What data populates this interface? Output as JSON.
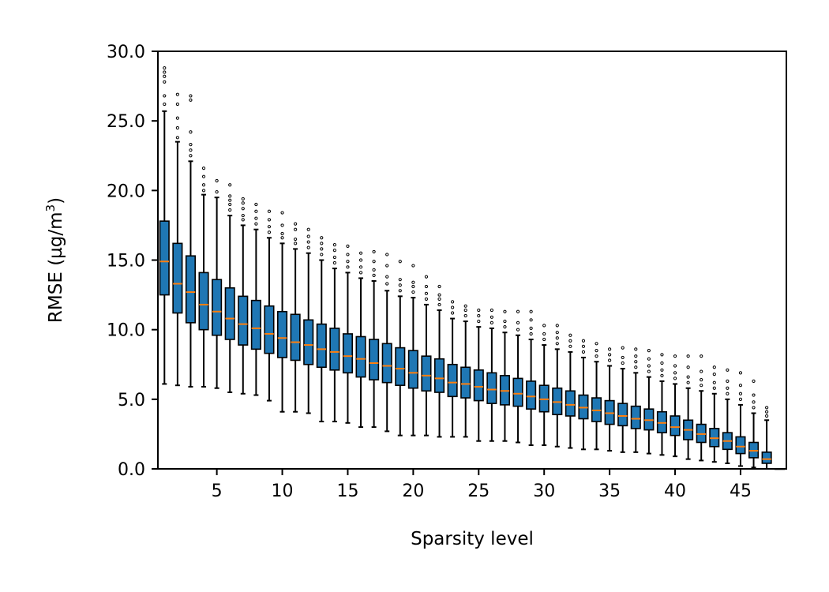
{
  "chart_data": {
    "type": "boxplot",
    "title": "",
    "xlabel": "Sparsity level",
    "ylabel_main": "RMSE (µg/m",
    "ylabel_sup": "3",
    "ylabel_close": ")",
    "xlim": [
      0.5,
      48.5
    ],
    "ylim": [
      0,
      30
    ],
    "x_ticks": [
      5,
      10,
      15,
      20,
      25,
      30,
      35,
      40,
      45
    ],
    "x_tick_labels": [
      "5",
      "10",
      "15",
      "20",
      "25",
      "30",
      "35",
      "40",
      "45"
    ],
    "y_ticks": [
      0,
      5,
      10,
      15,
      20,
      25,
      30
    ],
    "y_tick_labels": [
      "0.0",
      "5.0",
      "10.0",
      "15.0",
      "20.0",
      "25.0",
      "30.0"
    ],
    "grid": false,
    "colors": {
      "box": "#1f77b4",
      "median": "#ff7f0e",
      "outline": "#000000"
    },
    "boxes": [
      {
        "x": 1,
        "whislo": 6.1,
        "q1": 12.5,
        "med": 14.9,
        "q3": 17.8,
        "whishi": 25.7,
        "fliers": [
          26.2,
          26.8,
          27.8,
          28.2,
          28.5,
          28.8
        ]
      },
      {
        "x": 2,
        "whislo": 6.0,
        "q1": 11.2,
        "med": 13.3,
        "q3": 16.2,
        "whishi": 23.5,
        "fliers": [
          23.8,
          24.5,
          25.2,
          26.2,
          26.9
        ]
      },
      {
        "x": 3,
        "whislo": 5.9,
        "q1": 10.5,
        "med": 12.7,
        "q3": 15.3,
        "whishi": 22.1,
        "fliers": [
          22.5,
          22.9,
          23.3,
          24.2,
          26.5,
          26.8
        ]
      },
      {
        "x": 4,
        "whislo": 5.9,
        "q1": 10.0,
        "med": 11.8,
        "q3": 14.1,
        "whishi": 19.7,
        "fliers": [
          20.0,
          20.4,
          21.0,
          21.6
        ]
      },
      {
        "x": 5,
        "whislo": 5.8,
        "q1": 9.6,
        "med": 11.3,
        "q3": 13.6,
        "whishi": 19.5,
        "fliers": [
          19.9,
          20.7
        ]
      },
      {
        "x": 6,
        "whislo": 5.5,
        "q1": 9.3,
        "med": 10.8,
        "q3": 13.0,
        "whishi": 18.2,
        "fliers": [
          18.6,
          19.0,
          19.3,
          19.6,
          20.4
        ]
      },
      {
        "x": 7,
        "whislo": 5.4,
        "q1": 8.9,
        "med": 10.4,
        "q3": 12.4,
        "whishi": 17.5,
        "fliers": [
          17.9,
          18.2,
          18.7,
          19.1,
          19.4
        ]
      },
      {
        "x": 8,
        "whislo": 5.3,
        "q1": 8.6,
        "med": 10.1,
        "q3": 12.1,
        "whishi": 17.2,
        "fliers": [
          17.6,
          18.0,
          18.5,
          19.0
        ]
      },
      {
        "x": 9,
        "whislo": 4.9,
        "q1": 8.3,
        "med": 9.7,
        "q3": 11.7,
        "whishi": 16.6,
        "fliers": [
          17.0,
          17.4,
          17.9,
          18.5
        ]
      },
      {
        "x": 10,
        "whislo": 4.1,
        "q1": 8.0,
        "med": 9.4,
        "q3": 11.3,
        "whishi": 16.2,
        "fliers": [
          16.6,
          16.9,
          17.5,
          18.4
        ]
      },
      {
        "x": 11,
        "whislo": 4.1,
        "q1": 7.8,
        "med": 9.1,
        "q3": 11.1,
        "whishi": 15.8,
        "fliers": [
          16.2,
          16.5,
          17.2,
          17.6
        ]
      },
      {
        "x": 12,
        "whislo": 4.0,
        "q1": 7.5,
        "med": 8.9,
        "q3": 10.7,
        "whishi": 15.5,
        "fliers": [
          15.9,
          16.3,
          16.7,
          17.2
        ]
      },
      {
        "x": 13,
        "whislo": 3.4,
        "q1": 7.3,
        "med": 8.6,
        "q3": 10.4,
        "whishi": 15.0,
        "fliers": [
          15.4,
          15.8,
          16.2,
          16.6
        ]
      },
      {
        "x": 14,
        "whislo": 3.4,
        "q1": 7.1,
        "med": 8.4,
        "q3": 10.1,
        "whishi": 14.4,
        "fliers": [
          14.8,
          15.2,
          15.7,
          16.1
        ]
      },
      {
        "x": 15,
        "whislo": 3.3,
        "q1": 6.9,
        "med": 8.1,
        "q3": 9.7,
        "whishi": 14.1,
        "fliers": [
          14.5,
          14.9,
          15.4,
          16.0
        ]
      },
      {
        "x": 16,
        "whislo": 3.0,
        "q1": 6.6,
        "med": 7.9,
        "q3": 9.5,
        "whishi": 13.7,
        "fliers": [
          14.1,
          14.5,
          15.0,
          15.5
        ]
      },
      {
        "x": 17,
        "whislo": 3.0,
        "q1": 6.4,
        "med": 7.6,
        "q3": 9.3,
        "whishi": 13.5,
        "fliers": [
          13.9,
          14.3,
          14.9,
          15.6
        ]
      },
      {
        "x": 18,
        "whislo": 2.7,
        "q1": 6.2,
        "med": 7.4,
        "q3": 9.0,
        "whishi": 12.8,
        "fliers": [
          13.3,
          13.8,
          14.6,
          15.4
        ]
      },
      {
        "x": 19,
        "whislo": 2.4,
        "q1": 6.0,
        "med": 7.2,
        "q3": 8.7,
        "whishi": 12.4,
        "fliers": [
          12.8,
          13.2,
          13.6,
          14.9
        ]
      },
      {
        "x": 20,
        "whislo": 2.4,
        "q1": 5.8,
        "med": 6.9,
        "q3": 8.5,
        "whishi": 12.3,
        "fliers": [
          12.7,
          13.1,
          13.4,
          14.6
        ]
      },
      {
        "x": 21,
        "whislo": 2.4,
        "q1": 5.6,
        "med": 6.7,
        "q3": 8.1,
        "whishi": 11.8,
        "fliers": [
          12.2,
          12.6,
          13.1,
          13.8
        ]
      },
      {
        "x": 22,
        "whislo": 2.3,
        "q1": 5.5,
        "med": 6.5,
        "q3": 7.9,
        "whishi": 11.4,
        "fliers": [
          11.8,
          12.2,
          12.5,
          13.1
        ]
      },
      {
        "x": 23,
        "whislo": 2.3,
        "q1": 5.2,
        "med": 6.2,
        "q3": 7.5,
        "whishi": 10.8,
        "fliers": [
          11.2,
          11.6,
          12.0
        ]
      },
      {
        "x": 24,
        "whislo": 2.3,
        "q1": 5.1,
        "med": 6.1,
        "q3": 7.3,
        "whishi": 10.6,
        "fliers": [
          11.0,
          11.4,
          11.7
        ]
      },
      {
        "x": 25,
        "whislo": 2.0,
        "q1": 4.9,
        "med": 5.9,
        "q3": 7.1,
        "whishi": 10.2,
        "fliers": [
          10.6,
          11.0,
          11.4
        ]
      },
      {
        "x": 26,
        "whislo": 2.0,
        "q1": 4.7,
        "med": 5.7,
        "q3": 6.9,
        "whishi": 10.1,
        "fliers": [
          10.5,
          10.9,
          11.4
        ]
      },
      {
        "x": 27,
        "whislo": 2.0,
        "q1": 4.6,
        "med": 5.6,
        "q3": 6.7,
        "whishi": 9.8,
        "fliers": [
          10.2,
          10.6,
          11.3
        ]
      },
      {
        "x": 28,
        "whislo": 1.9,
        "q1": 4.5,
        "med": 5.4,
        "q3": 6.5,
        "whishi": 9.6,
        "fliers": [
          10.0,
          10.5,
          11.3
        ]
      },
      {
        "x": 29,
        "whislo": 1.7,
        "q1": 4.3,
        "med": 5.2,
        "q3": 6.3,
        "whishi": 9.3,
        "fliers": [
          9.7,
          10.1,
          10.7,
          11.3
        ]
      },
      {
        "x": 30,
        "whislo": 1.7,
        "q1": 4.1,
        "med": 5.0,
        "q3": 6.0,
        "whishi": 8.9,
        "fliers": [
          9.3,
          9.7,
          10.3
        ]
      },
      {
        "x": 31,
        "whislo": 1.6,
        "q1": 3.9,
        "med": 4.8,
        "q3": 5.8,
        "whishi": 8.6,
        "fliers": [
          9.0,
          9.4,
          9.8,
          10.3
        ]
      },
      {
        "x": 32,
        "whislo": 1.5,
        "q1": 3.8,
        "med": 4.6,
        "q3": 5.6,
        "whishi": 8.4,
        "fliers": [
          8.8,
          9.2,
          9.6
        ]
      },
      {
        "x": 33,
        "whislo": 1.4,
        "q1": 3.6,
        "med": 4.4,
        "q3": 5.3,
        "whishi": 8.0,
        "fliers": [
          8.4,
          8.8,
          9.2
        ]
      },
      {
        "x": 34,
        "whislo": 1.4,
        "q1": 3.4,
        "med": 4.2,
        "q3": 5.1,
        "whishi": 7.7,
        "fliers": [
          8.1,
          8.5,
          9.0
        ]
      },
      {
        "x": 35,
        "whislo": 1.3,
        "q1": 3.2,
        "med": 4.0,
        "q3": 4.9,
        "whishi": 7.4,
        "fliers": [
          7.8,
          8.2,
          8.6
        ]
      },
      {
        "x": 36,
        "whislo": 1.2,
        "q1": 3.1,
        "med": 3.8,
        "q3": 4.7,
        "whishi": 7.2,
        "fliers": [
          7.6,
          8.0,
          8.7
        ]
      },
      {
        "x": 37,
        "whislo": 1.2,
        "q1": 2.9,
        "med": 3.6,
        "q3": 4.5,
        "whishi": 6.9,
        "fliers": [
          7.3,
          7.7,
          8.1,
          8.6
        ]
      },
      {
        "x": 38,
        "whislo": 1.1,
        "q1": 2.8,
        "med": 3.5,
        "q3": 4.3,
        "whishi": 6.6,
        "fliers": [
          7.0,
          7.4,
          7.9,
          8.5
        ]
      },
      {
        "x": 39,
        "whislo": 1.0,
        "q1": 2.6,
        "med": 3.3,
        "q3": 4.1,
        "whishi": 6.3,
        "fliers": [
          6.7,
          7.1,
          7.6,
          8.2
        ]
      },
      {
        "x": 40,
        "whislo": 0.9,
        "q1": 2.4,
        "med": 3.0,
        "q3": 3.8,
        "whishi": 6.1,
        "fliers": [
          6.5,
          6.9,
          7.4,
          8.1
        ]
      },
      {
        "x": 41,
        "whislo": 0.7,
        "q1": 2.1,
        "med": 2.8,
        "q3": 3.5,
        "whishi": 5.8,
        "fliers": [
          6.2,
          6.6,
          7.3,
          8.1
        ]
      },
      {
        "x": 42,
        "whislo": 0.6,
        "q1": 1.9,
        "med": 2.5,
        "q3": 3.2,
        "whishi": 5.6,
        "fliers": [
          6.0,
          6.4,
          7.0,
          8.1
        ]
      },
      {
        "x": 43,
        "whislo": 0.5,
        "q1": 1.6,
        "med": 2.2,
        "q3": 2.9,
        "whishi": 5.4,
        "fliers": [
          5.8,
          6.2,
          6.8,
          7.3
        ]
      },
      {
        "x": 44,
        "whislo": 0.4,
        "q1": 1.4,
        "med": 2.0,
        "q3": 2.6,
        "whishi": 5.0,
        "fliers": [
          5.4,
          5.8,
          6.3,
          7.1
        ]
      },
      {
        "x": 45,
        "whislo": 0.2,
        "q1": 1.1,
        "med": 1.6,
        "q3": 2.3,
        "whishi": 4.6,
        "fliers": [
          5.0,
          5.4,
          6.0,
          6.9
        ]
      },
      {
        "x": 46,
        "whislo": 0.1,
        "q1": 0.8,
        "med": 1.3,
        "q3": 1.9,
        "whishi": 4.0,
        "fliers": [
          4.4,
          4.8,
          5.3,
          6.3
        ]
      },
      {
        "x": 47,
        "whislo": 0.0,
        "q1": 0.4,
        "med": 0.7,
        "q3": 1.2,
        "whishi": 3.5,
        "fliers": [
          3.8,
          4.1,
          4.4
        ]
      },
      {
        "x": 48,
        "whislo": 0.0,
        "q1": 0.0,
        "med": 0.0,
        "q3": 0.0,
        "whishi": 0.0,
        "fliers": []
      }
    ]
  }
}
